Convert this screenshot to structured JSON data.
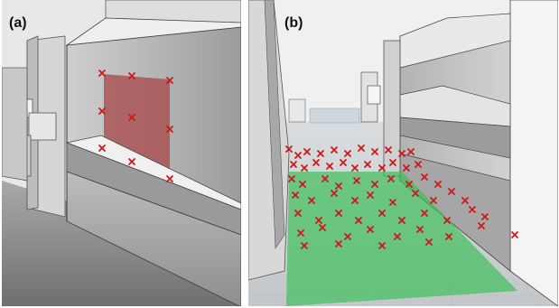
{
  "panels": [
    {
      "label": "(a)"
    },
    {
      "label": "(b)"
    }
  ],
  "colors": {
    "sensor_marker": "#cc1a1a",
    "wall_region": "#a84a4a",
    "floor_region": "#3fbf5a",
    "shelf_face": "#d9d9d9",
    "shelf_shadow": "#8a8a8a"
  },
  "icons": {
    "marker": "cross-marker-icon"
  }
}
